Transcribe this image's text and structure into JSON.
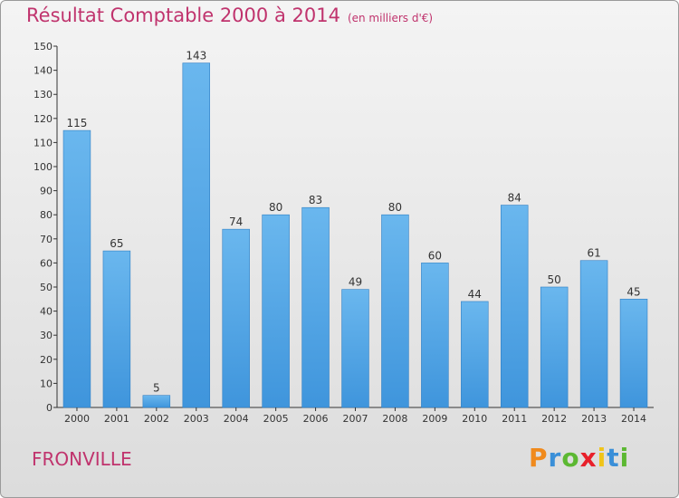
{
  "title": "Résultat Comptable 2000 à 2014",
  "subtitle": "(en milliers d'€)",
  "commune": "FRONVILLE",
  "logo": {
    "letters": [
      "P",
      "r",
      "o",
      "x",
      "i",
      "t",
      "i"
    ],
    "colors": [
      "#f08a1c",
      "#3a8fd8",
      "#5cb832",
      "#e8202a",
      "#f0c419",
      "#3a8fd8",
      "#5cb832"
    ]
  },
  "colors": {
    "bar": "#3f95dc",
    "bar_light": "#6ab7ee",
    "title": "#c0336d"
  },
  "chart_data": {
    "type": "bar",
    "title": "Résultat Comptable 2000 à 2014",
    "subtitle": "(en milliers d'€)",
    "categories": [
      "2000",
      "2001",
      "2002",
      "2003",
      "2004",
      "2005",
      "2006",
      "2007",
      "2008",
      "2009",
      "2010",
      "2011",
      "2012",
      "2013",
      "2014"
    ],
    "values": [
      115,
      65,
      5,
      143,
      74,
      80,
      83,
      49,
      80,
      60,
      44,
      84,
      50,
      61,
      45
    ],
    "ylim": [
      0,
      150
    ],
    "yticks": [
      0,
      10,
      20,
      30,
      40,
      50,
      60,
      70,
      80,
      90,
      100,
      110,
      120,
      130,
      140,
      150
    ],
    "grid": false,
    "legend": "none"
  }
}
